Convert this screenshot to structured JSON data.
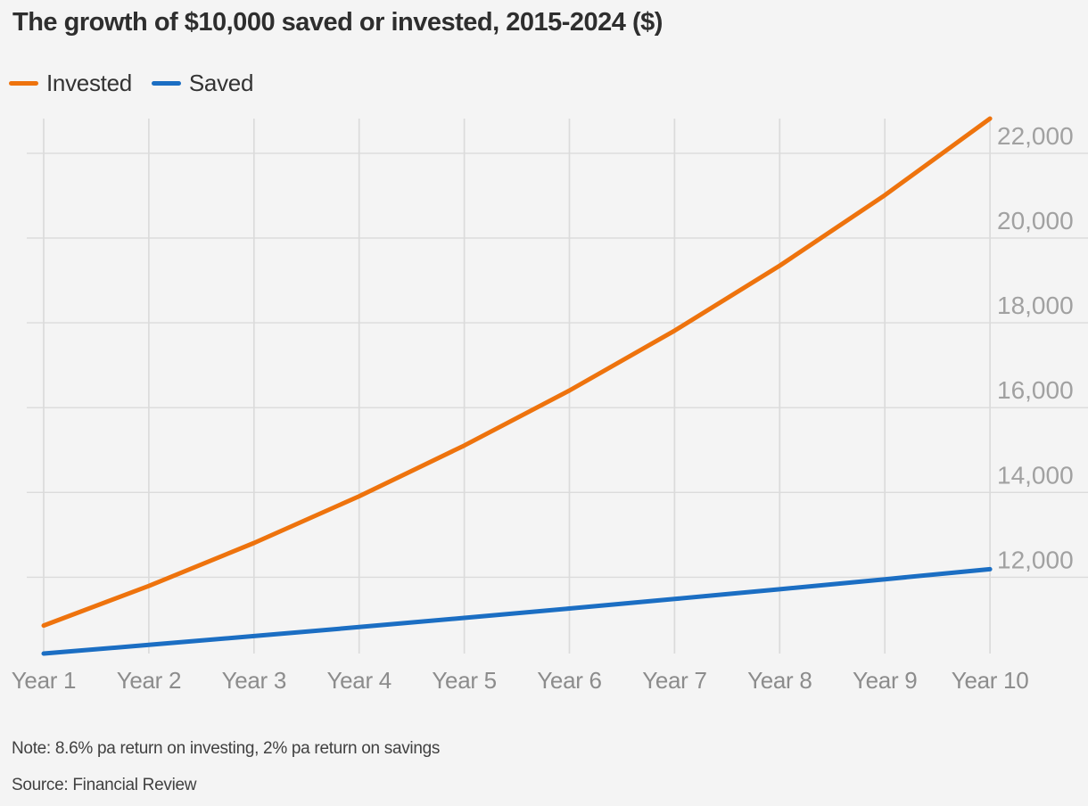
{
  "header": {
    "title": "The growth of $10,000 saved or invested, 2015-2024 ($)"
  },
  "colors": {
    "background": "#F4F4F4",
    "grid": "#DBDBDB",
    "invested_line": "#EE730D",
    "saved_line": "#1B6EC3",
    "title_text": "#2E2E2E",
    "y_tick_text": "#A1A1A1",
    "x_tick_text": "#8C8C8C",
    "note_text": "#414141"
  },
  "chart_data": {
    "type": "line",
    "title": "The growth of $10,000 saved or invested, 2015-2024 ($)",
    "categories": [
      "Year 1",
      "Year 2",
      "Year 3",
      "Year 4",
      "Year 5",
      "Year 6",
      "Year 7",
      "Year 8",
      "Year 9",
      "Year 10"
    ],
    "series": [
      {
        "name": "Invested",
        "color": "#EE730D",
        "values": [
          10860,
          11794,
          12808,
          13910,
          15106,
          16405,
          17816,
          19348,
          21012,
          22819
        ]
      },
      {
        "name": "Saved",
        "color": "#1B6EC3",
        "values": [
          10200,
          10404,
          10612,
          10824,
          11041,
          11262,
          11487,
          11717,
          11951,
          12190
        ]
      }
    ],
    "ylim": [
      10200,
      22819
    ],
    "yticks": [
      12000,
      14000,
      16000,
      18000,
      20000,
      22000
    ],
    "ytick_labels": [
      "12,000",
      "14,000",
      "16,000",
      "18,000",
      "20,000",
      "22,000"
    ],
    "grid": true,
    "legend_position": "top-left",
    "y_axis_side": "right"
  },
  "footer": {
    "note": "Note: 8.6% pa return on investing, 2% pa return on savings",
    "source": "Source: Financial Review"
  }
}
